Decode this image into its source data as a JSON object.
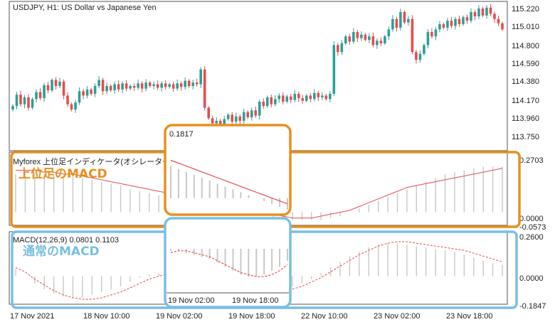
{
  "chart_header": "USDJPY, H1:  US Dollar vs Japanese Yen",
  "price_axis": [
    "115.220",
    "115.010",
    "114.800",
    "114.590",
    "114.380",
    "114.170",
    "113.960",
    "113.750"
  ],
  "indicator1": {
    "header_text": "Myforex 上位足インディケータ(オシレーター系) 0.2357",
    "axis_top": "0.2703",
    "axis_mid": "0.0000",
    "axis_bottom": "-0.0573",
    "annotation": "上位足のMACD",
    "annotation_color": "#e8901e"
  },
  "indicator2": {
    "header_text": "MACD(12,26,9) 0.0801 0.1103",
    "axis_top": "0.2600",
    "axis_mid": "0.0000",
    "axis_bottom": "-0.1847",
    "annotation": "通常のMACD",
    "annotation_color": "#79bfe0"
  },
  "time_axis": [
    "17 Nov 2021",
    "18 Nov 10:00",
    "19 Nov 02:00",
    "19 Nov 18:00",
    "22 Nov 10:00",
    "23 Nov 02:00",
    "23 Nov 18:00"
  ],
  "zoom_top": {
    "value_label": "0.1817"
  },
  "zoom_bottom": {
    "time_labels": [
      "19 Nov 02:00",
      "19 Nov 18:00"
    ]
  },
  "colors": {
    "bull": "#2aa198",
    "bear": "#e84c4c",
    "orange": "#e8901e",
    "blue": "#79bfe0",
    "hist": "#c8c8c8",
    "signal": "#e84c4c"
  },
  "candles_close": [
    114.1,
    114.23,
    114.12,
    114.2,
    114.08,
    114.18,
    114.26,
    114.19,
    114.34,
    114.28,
    114.4,
    114.33,
    114.38,
    114.22,
    114.12,
    114.06,
    114.14,
    114.27,
    114.22,
    114.29,
    114.24,
    114.33,
    114.4,
    114.27,
    114.33,
    114.28,
    114.35,
    114.29,
    114.36,
    114.3,
    114.33,
    114.31,
    114.36,
    114.3,
    114.37,
    114.33,
    114.35,
    114.31,
    114.36,
    114.32,
    114.35,
    114.3,
    114.36,
    114.32,
    114.39,
    114.33,
    114.37,
    114.35,
    114.52,
    114.08,
    113.96,
    113.9,
    113.93,
    113.88,
    113.95,
    114.0,
    113.92,
    113.98,
    113.93,
    114.03,
    113.97,
    114.05,
    113.99,
    114.15,
    114.1,
    114.2,
    114.12,
    114.18,
    114.22,
    114.15,
    114.21,
    114.17,
    114.24,
    114.19,
    114.16,
    114.22,
    114.18,
    114.25,
    114.2,
    114.22,
    114.18,
    114.24,
    114.8,
    114.72,
    114.82,
    114.9,
    114.84,
    114.95,
    114.88,
    114.92,
    114.86,
    114.9,
    114.8,
    114.85,
    114.82,
    114.9,
    114.98,
    115.1,
    115.0,
    115.18,
    115.06,
    115.1,
    114.72,
    114.63,
    114.7,
    114.8,
    114.95,
    114.9,
    114.98,
    115.04,
    115.0,
    115.08,
    115.02,
    115.1,
    115.04,
    115.12,
    115.08,
    115.18,
    115.13,
    115.22,
    115.14,
    115.23,
    115.16,
    115.1,
    115.05,
    114.98
  ],
  "macd_main": [
    0.05,
    0.0,
    -0.05,
    -0.09,
    -0.12,
    -0.14,
    -0.15,
    -0.15,
    -0.13,
    -0.11,
    -0.09,
    -0.07,
    -0.04,
    -0.01,
    0.01,
    0.02,
    0.03,
    0.03,
    0.02,
    0.01,
    0.0,
    -0.01,
    -0.03,
    -0.05,
    -0.07,
    -0.09,
    -0.1,
    -0.1,
    -0.09,
    -0.07,
    -0.05,
    -0.02,
    0.02,
    0.06,
    0.1,
    0.14,
    0.17,
    0.2,
    0.22,
    0.23,
    0.23,
    0.22,
    0.21,
    0.2,
    0.19,
    0.18,
    0.17,
    0.15,
    0.13,
    0.11,
    0.09,
    0.08
  ],
  "macd_signal": [
    0.06,
    0.03,
    -0.02,
    -0.06,
    -0.1,
    -0.13,
    -0.15,
    -0.16,
    -0.16,
    -0.15,
    -0.13,
    -0.11,
    -0.08,
    -0.05,
    -0.02,
    0.0,
    0.02,
    0.03,
    0.03,
    0.02,
    0.01,
    0.0,
    -0.02,
    -0.04,
    -0.06,
    -0.08,
    -0.09,
    -0.1,
    -0.1,
    -0.09,
    -0.07,
    -0.04,
    -0.01,
    0.03,
    0.07,
    0.11,
    0.15,
    0.18,
    0.21,
    0.23,
    0.24,
    0.24,
    0.23,
    0.22,
    0.21,
    0.2,
    0.19,
    0.18,
    0.16,
    0.14,
    0.12,
    0.1
  ],
  "htf_main": [
    0.2,
    0.21,
    0.21,
    0.2,
    0.2,
    0.19,
    0.19,
    0.18,
    0.17,
    0.16,
    0.15,
    0.14,
    0.12,
    0.11,
    0.1,
    0.09,
    0.08,
    0.07,
    0.06,
    0.05,
    0.04,
    0.03,
    0.02,
    0.01,
    0.0,
    -0.01,
    -0.02,
    -0.03,
    -0.04,
    -0.04,
    -0.04,
    -0.04,
    -0.04,
    -0.03,
    -0.02,
    0.0,
    0.02,
    0.04,
    0.06,
    0.08,
    0.1,
    0.12,
    0.14,
    0.16,
    0.18,
    0.2,
    0.21,
    0.22,
    0.23,
    0.24,
    0.24,
    0.24
  ],
  "htf_signal": [
    0.22,
    0.22,
    0.22,
    0.21,
    0.21,
    0.2,
    0.2,
    0.19,
    0.18,
    0.17,
    0.16,
    0.15,
    0.14,
    0.13,
    0.12,
    0.11,
    0.1,
    0.09,
    0.08,
    0.07,
    0.06,
    0.05,
    0.04,
    0.03,
    0.02,
    0.01,
    0.0,
    -0.01,
    -0.02,
    -0.03,
    -0.03,
    -0.03,
    -0.02,
    -0.01,
    0.0,
    0.01,
    0.03,
    0.05,
    0.07,
    0.09,
    0.11,
    0.13,
    0.14,
    0.15,
    0.16,
    0.17,
    0.18,
    0.19,
    0.2,
    0.21,
    0.22,
    0.23
  ]
}
